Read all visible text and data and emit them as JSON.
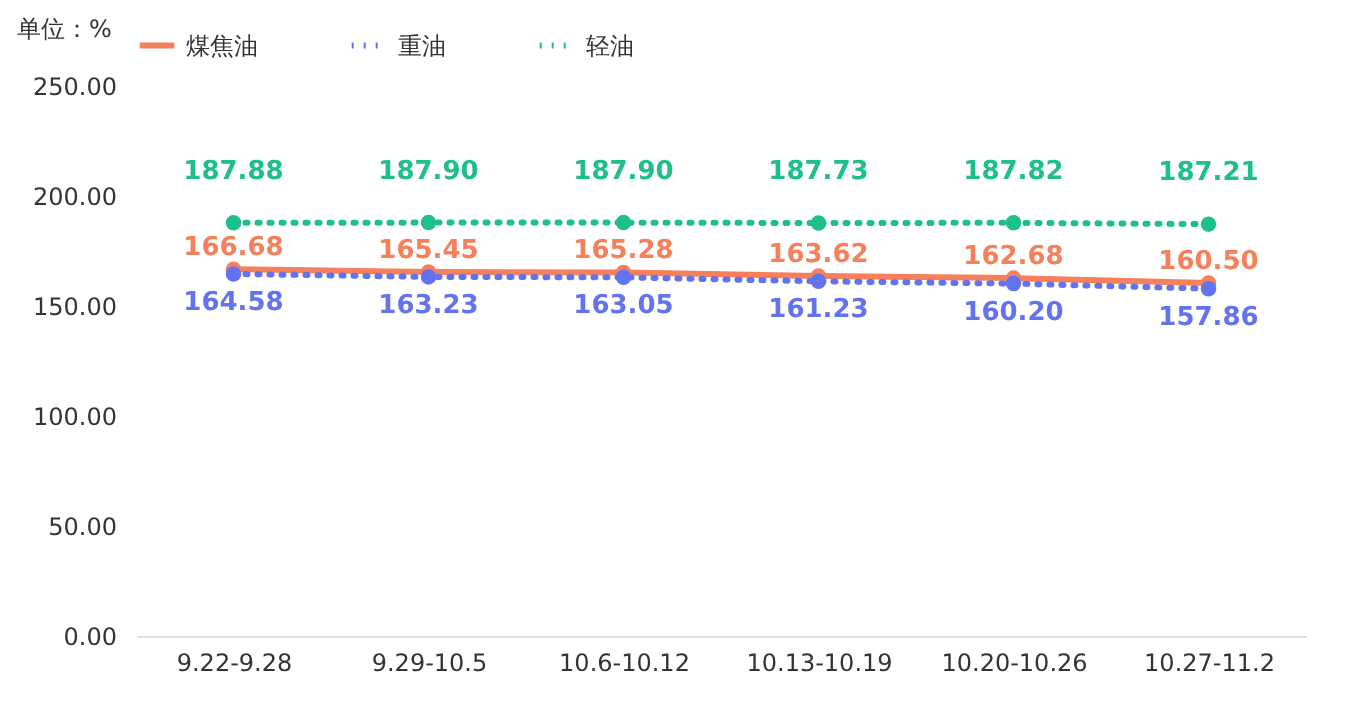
{
  "chart_data": {
    "type": "line",
    "ylabel": "单位：%",
    "categories": [
      "9.22-9.28",
      "9.29-10.5",
      "10.6-10.12",
      "10.13-10.19",
      "10.20-10.26",
      "10.27-11.2"
    ],
    "series": [
      {
        "name": "煤焦油",
        "color": "#f4805c",
        "line_style": "solid",
        "values": [
          166.68,
          165.45,
          165.28,
          163.62,
          162.68,
          160.5
        ],
        "value_labels": [
          "166.68",
          "165.45",
          "165.28",
          "163.62",
          "162.68",
          "160.50"
        ]
      },
      {
        "name": "重油",
        "color": "#6373f0",
        "line_style": "dotted",
        "values": [
          164.58,
          163.23,
          163.05,
          161.23,
          160.2,
          157.86
        ],
        "value_labels": [
          "164.58",
          "163.23",
          "163.05",
          "161.23",
          "160.20",
          "157.86"
        ]
      },
      {
        "name": "轻油",
        "color": "#1dbf8a",
        "line_style": "dotted",
        "values": [
          187.88,
          187.9,
          187.9,
          187.73,
          187.82,
          187.21
        ],
        "value_labels": [
          "187.88",
          "187.90",
          "187.90",
          "187.73",
          "187.82",
          "187.21"
        ]
      }
    ],
    "ylim": [
      0,
      250
    ],
    "yticks": [
      {
        "value": 0,
        "label": "0.00"
      },
      {
        "value": 50,
        "label": "50.00"
      },
      {
        "value": 100,
        "label": "100.00"
      },
      {
        "value": 150,
        "label": "150.00"
      },
      {
        "value": 200,
        "label": "200.00"
      },
      {
        "value": 250,
        "label": "250.00"
      }
    ],
    "grid": false,
    "legend": "top",
    "marker": "circle"
  }
}
